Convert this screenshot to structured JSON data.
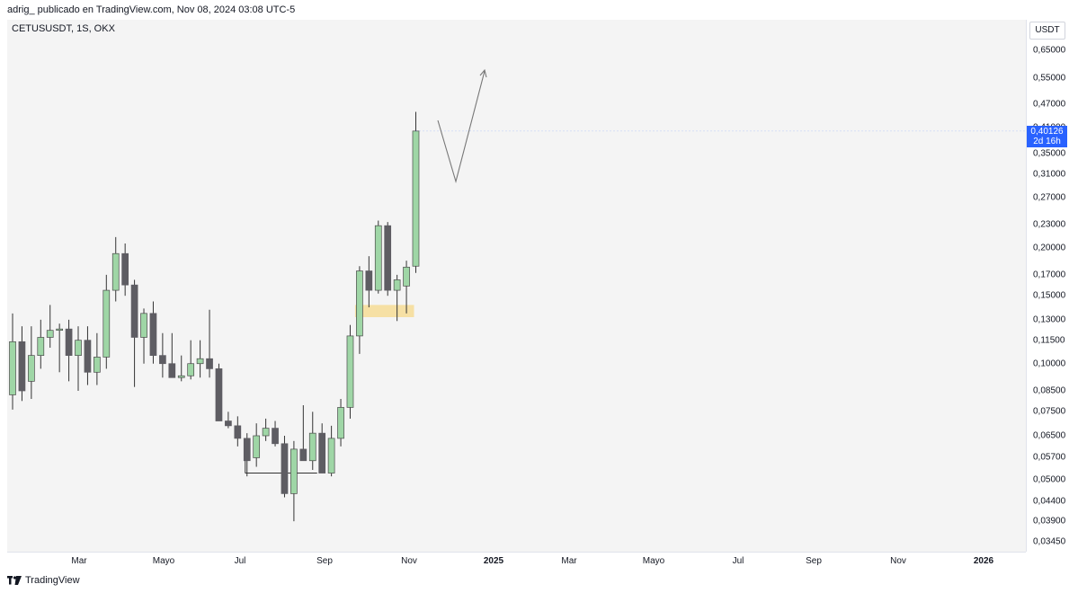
{
  "caption": "adrig_ publicado en TradingView.com, Nov 08, 2024 03:08 UTC-5",
  "symbol": "CETUSUSDT, 1S, OKX",
  "currency": "USDT",
  "last_price": "0,40126",
  "countdown": "2d 16h",
  "footer": "TradingView",
  "colors": {
    "up": "#9fd6a6",
    "down": "#5e5d63",
    "wick": "#333333",
    "zone": "#f7d98a",
    "badge": "#2962ff",
    "background": "#f4f4f4"
  },
  "chart_data": {
    "type": "candlestick",
    "y_scale": "log",
    "ylim": [
      0.033,
      0.75
    ],
    "y_ticks": [
      "0,65000",
      "0,55000",
      "0,47000",
      "0,41000",
      "0,35000",
      "0,31000",
      "0,27000",
      "0,23000",
      "0,20000",
      "0,17000",
      "0,15000",
      "0,13000",
      "0,11500",
      "0,10000",
      "0,08500",
      "0,07500",
      "0,06500",
      "0,05700",
      "0,05000",
      "0,04400",
      "0,03900",
      "0,03450"
    ],
    "x_ticks": [
      {
        "label": "Mar",
        "bold": false
      },
      {
        "label": "Mayo",
        "bold": false
      },
      {
        "label": "Jul",
        "bold": false
      },
      {
        "label": "Sep",
        "bold": false
      },
      {
        "label": "Nov",
        "bold": false
      },
      {
        "label": "2025",
        "bold": true
      },
      {
        "label": "Mar",
        "bold": false
      },
      {
        "label": "Mayo",
        "bold": false
      },
      {
        "label": "Jul",
        "bold": false
      },
      {
        "label": "Sep",
        "bold": false
      },
      {
        "label": "Nov",
        "bold": false
      },
      {
        "label": "2026",
        "bold": true
      }
    ],
    "candles": [
      {
        "o": 0.083,
        "h": 0.135,
        "l": 0.076,
        "c": 0.114
      },
      {
        "o": 0.114,
        "h": 0.125,
        "l": 0.08,
        "c": 0.085
      },
      {
        "o": 0.09,
        "h": 0.125,
        "l": 0.081,
        "c": 0.105
      },
      {
        "o": 0.105,
        "h": 0.13,
        "l": 0.097,
        "c": 0.117
      },
      {
        "o": 0.117,
        "h": 0.142,
        "l": 0.11,
        "c": 0.122
      },
      {
        "o": 0.122,
        "h": 0.127,
        "l": 0.095,
        "c": 0.123
      },
      {
        "o": 0.123,
        "h": 0.13,
        "l": 0.09,
        "c": 0.105
      },
      {
        "o": 0.105,
        "h": 0.125,
        "l": 0.085,
        "c": 0.115
      },
      {
        "o": 0.115,
        "h": 0.125,
        "l": 0.088,
        "c": 0.095
      },
      {
        "o": 0.095,
        "h": 0.12,
        "l": 0.088,
        "c": 0.104
      },
      {
        "o": 0.104,
        "h": 0.17,
        "l": 0.097,
        "c": 0.155
      },
      {
        "o": 0.155,
        "h": 0.213,
        "l": 0.145,
        "c": 0.193
      },
      {
        "o": 0.193,
        "h": 0.205,
        "l": 0.15,
        "c": 0.16
      },
      {
        "o": 0.16,
        "h": 0.165,
        "l": 0.087,
        "c": 0.117
      },
      {
        "o": 0.117,
        "h": 0.139,
        "l": 0.1,
        "c": 0.135
      },
      {
        "o": 0.135,
        "h": 0.145,
        "l": 0.1,
        "c": 0.105
      },
      {
        "o": 0.105,
        "h": 0.12,
        "l": 0.092,
        "c": 0.1
      },
      {
        "o": 0.1,
        "h": 0.12,
        "l": 0.092,
        "c": 0.092
      },
      {
        "o": 0.092,
        "h": 0.105,
        "l": 0.09,
        "c": 0.093
      },
      {
        "o": 0.093,
        "h": 0.115,
        "l": 0.091,
        "c": 0.1
      },
      {
        "o": 0.1,
        "h": 0.115,
        "l": 0.092,
        "c": 0.103
      },
      {
        "o": 0.103,
        "h": 0.138,
        "l": 0.092,
        "c": 0.097
      },
      {
        "o": 0.097,
        "h": 0.1,
        "l": 0.071,
        "c": 0.071
      },
      {
        "o": 0.071,
        "h": 0.075,
        "l": 0.068,
        "c": 0.069
      },
      {
        "o": 0.069,
        "h": 0.073,
        "l": 0.061,
        "c": 0.064
      },
      {
        "o": 0.064,
        "h": 0.066,
        "l": 0.051,
        "c": 0.056
      },
      {
        "o": 0.057,
        "h": 0.07,
        "l": 0.054,
        "c": 0.065
      },
      {
        "o": 0.065,
        "h": 0.072,
        "l": 0.063,
        "c": 0.068
      },
      {
        "o": 0.068,
        "h": 0.071,
        "l": 0.061,
        "c": 0.062
      },
      {
        "o": 0.062,
        "h": 0.065,
        "l": 0.045,
        "c": 0.046
      },
      {
        "o": 0.046,
        "h": 0.063,
        "l": 0.039,
        "c": 0.06
      },
      {
        "o": 0.06,
        "h": 0.078,
        "l": 0.057,
        "c": 0.056
      },
      {
        "o": 0.056,
        "h": 0.075,
        "l": 0.053,
        "c": 0.066
      },
      {
        "o": 0.066,
        "h": 0.07,
        "l": 0.052,
        "c": 0.052
      },
      {
        "o": 0.052,
        "h": 0.069,
        "l": 0.051,
        "c": 0.064
      },
      {
        "o": 0.064,
        "h": 0.081,
        "l": 0.061,
        "c": 0.077
      },
      {
        "o": 0.077,
        "h": 0.126,
        "l": 0.072,
        "c": 0.118
      },
      {
        "o": 0.118,
        "h": 0.179,
        "l": 0.106,
        "c": 0.174
      },
      {
        "o": 0.174,
        "h": 0.19,
        "l": 0.14,
        "c": 0.155
      },
      {
        "o": 0.155,
        "h": 0.235,
        "l": 0.152,
        "c": 0.228
      },
      {
        "o": 0.228,
        "h": 0.233,
        "l": 0.15,
        "c": 0.155
      },
      {
        "o": 0.155,
        "h": 0.17,
        "l": 0.129,
        "c": 0.165
      },
      {
        "o": 0.159,
        "h": 0.185,
        "l": 0.135,
        "c": 0.178
      },
      {
        "o": 0.179,
        "h": 0.45,
        "l": 0.172,
        "c": 0.4013
      }
    ],
    "last_value": 0.40126,
    "support_zone": {
      "low": 0.132,
      "high": 0.142,
      "from_candle": 37,
      "to_candle": 43
    },
    "bracket_line": {
      "price": 0.052,
      "from_candle": 25,
      "to_candle": 32
    }
  }
}
